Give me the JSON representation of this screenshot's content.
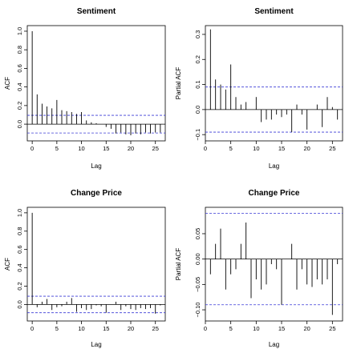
{
  "chart_data": [
    {
      "type": "bar",
      "subtype": "correlogram",
      "title": "Sentiment",
      "xlabel": "Lag",
      "ylabel": "ACF",
      "xlim": [
        -1,
        27
      ],
      "ylim": [
        -0.18,
        1.06
      ],
      "xticks": [
        0,
        5,
        10,
        15,
        20,
        25
      ],
      "yticks": [
        0.0,
        0.2,
        0.4,
        0.6,
        0.8,
        1.0
      ],
      "ytick_labels": [
        "0.0",
        "0.2",
        "0.4",
        "0.6",
        "0.8",
        "1.0"
      ],
      "confidence_band": 0.095,
      "lags": [
        0,
        1,
        2,
        3,
        4,
        5,
        6,
        7,
        8,
        9,
        10,
        11,
        12,
        13,
        14,
        15,
        16,
        17,
        18,
        19,
        20,
        21,
        22,
        23,
        24,
        25,
        26
      ],
      "values": [
        1.0,
        0.32,
        0.22,
        0.19,
        0.17,
        0.26,
        0.15,
        0.14,
        0.13,
        0.11,
        0.13,
        0.04,
        0.02,
        0.01,
        0.0,
        -0.03,
        -0.05,
        -0.1,
        -0.09,
        -0.11,
        -0.12,
        -0.1,
        -0.11,
        -0.09,
        -0.1,
        -0.09,
        -0.09
      ]
    },
    {
      "type": "bar",
      "subtype": "correlogram",
      "title": "Sentiment",
      "xlabel": "Lag",
      "ylabel": "Partial ACF",
      "xlim": [
        0,
        27
      ],
      "ylim": [
        -0.125,
        0.335
      ],
      "xticks": [
        0,
        5,
        10,
        15,
        20,
        25
      ],
      "yticks": [
        -0.1,
        0.0,
        0.1,
        0.2,
        0.3
      ],
      "ytick_labels": [
        "−0.1",
        "0.0",
        "0.1",
        "0.2",
        "0.3"
      ],
      "confidence_band": 0.09,
      "lags": [
        1,
        2,
        3,
        4,
        5,
        6,
        7,
        8,
        9,
        10,
        11,
        12,
        13,
        14,
        15,
        16,
        17,
        18,
        19,
        20,
        21,
        22,
        23,
        24,
        25,
        26
      ],
      "values": [
        0.32,
        0.12,
        0.1,
        0.08,
        0.18,
        0.05,
        0.02,
        0.03,
        0.0,
        0.05,
        -0.05,
        -0.04,
        -0.04,
        -0.02,
        -0.03,
        -0.02,
        -0.09,
        0.02,
        -0.02,
        -0.08,
        0.0,
        0.02,
        -0.07,
        0.05,
        0.01,
        -0.04
      ]
    },
    {
      "type": "bar",
      "subtype": "correlogram",
      "title": "Change Price",
      "xlabel": "Lag",
      "ylabel": "ACF",
      "xlim": [
        -1,
        27
      ],
      "ylim": [
        -0.18,
        1.06
      ],
      "xticks": [
        0,
        5,
        10,
        15,
        20,
        25
      ],
      "yticks": [
        0.0,
        0.2,
        0.4,
        0.6,
        0.8,
        1.0
      ],
      "ytick_labels": [
        "0.0",
        "0.2",
        "0.4",
        "0.6",
        "0.8",
        "1.0"
      ],
      "confidence_band": 0.09,
      "lags": [
        0,
        1,
        2,
        3,
        4,
        5,
        6,
        7,
        8,
        9,
        10,
        11,
        12,
        13,
        14,
        15,
        16,
        17,
        18,
        19,
        20,
        21,
        22,
        23,
        24,
        25,
        26
      ],
      "values": [
        1.0,
        -0.03,
        0.03,
        0.06,
        -0.06,
        -0.03,
        -0.02,
        0.03,
        0.07,
        -0.08,
        -0.04,
        -0.06,
        -0.05,
        -0.01,
        -0.02,
        -0.09,
        0.0,
        0.03,
        -0.06,
        -0.02,
        -0.05,
        -0.06,
        -0.04,
        -0.05,
        -0.04,
        -0.1,
        -0.01
      ]
    },
    {
      "type": "bar",
      "subtype": "correlogram",
      "title": "Change Price",
      "xlabel": "Lag",
      "ylabel": "Partial ACF",
      "xlim": [
        0,
        27
      ],
      "ylim": [
        -0.122,
        0.102
      ],
      "xticks": [
        0,
        5,
        10,
        15,
        20,
        25
      ],
      "yticks": [
        -0.1,
        -0.05,
        0.0,
        0.05
      ],
      "ytick_labels": [
        "−0.10",
        "−0.05",
        "0.00",
        "0.05"
      ],
      "confidence_band": 0.09,
      "lags": [
        1,
        2,
        3,
        4,
        5,
        6,
        7,
        8,
        9,
        10,
        11,
        12,
        13,
        14,
        15,
        16,
        17,
        18,
        19,
        20,
        21,
        22,
        23,
        24,
        25,
        26
      ],
      "values": [
        -0.03,
        0.03,
        0.06,
        -0.06,
        -0.03,
        -0.02,
        0.03,
        0.072,
        -0.077,
        -0.04,
        -0.06,
        -0.05,
        -0.01,
        -0.02,
        -0.09,
        0.0,
        0.03,
        -0.06,
        -0.02,
        -0.05,
        -0.055,
        -0.04,
        -0.05,
        -0.04,
        -0.11,
        -0.01
      ]
    }
  ]
}
